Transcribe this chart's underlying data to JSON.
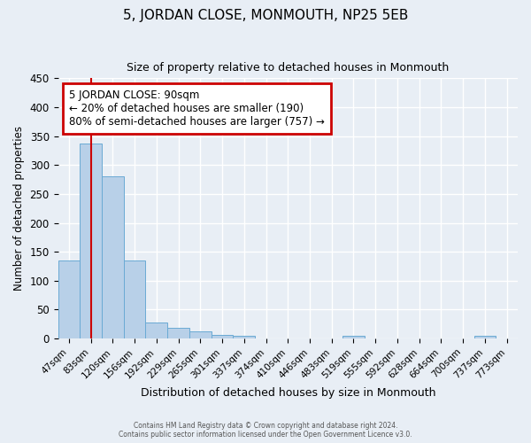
{
  "title": "5, JORDAN CLOSE, MONMOUTH, NP25 5EB",
  "subtitle": "Size of property relative to detached houses in Monmouth",
  "xlabel": "Distribution of detached houses by size in Monmouth",
  "ylabel": "Number of detached properties",
  "footnote1": "Contains HM Land Registry data © Crown copyright and database right 2024.",
  "footnote2": "Contains public sector information licensed under the Open Government Licence v3.0.",
  "bar_labels": [
    "47sqm",
    "83sqm",
    "120sqm",
    "156sqm",
    "192sqm",
    "229sqm",
    "265sqm",
    "301sqm",
    "337sqm",
    "374sqm",
    "410sqm",
    "446sqm",
    "483sqm",
    "519sqm",
    "555sqm",
    "592sqm",
    "628sqm",
    "664sqm",
    "700sqm",
    "737sqm",
    "773sqm"
  ],
  "bar_values": [
    135,
    337,
    281,
    135,
    27,
    18,
    12,
    6,
    4,
    0,
    0,
    0,
    0,
    4,
    0,
    0,
    0,
    0,
    0,
    4,
    0
  ],
  "bar_color": "#b8d0e8",
  "bar_edge_color": "#6aaad4",
  "background_color": "#e8eef5",
  "grid_color": "#ffffff",
  "vline_color": "#cc0000",
  "vline_x_data": 1,
  "ylim": [
    0,
    450
  ],
  "yticks": [
    0,
    50,
    100,
    150,
    200,
    250,
    300,
    350,
    400,
    450
  ],
  "annotation_title": "5 JORDAN CLOSE: 90sqm",
  "annotation_line1": "← 20% of detached houses are smaller (190)",
  "annotation_line2": "80% of semi-detached houses are larger (757) →",
  "annotation_box_color": "#cc0000"
}
